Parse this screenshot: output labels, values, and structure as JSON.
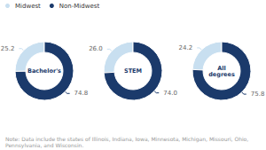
{
  "chart_data": [
    {
      "type": "pie",
      "title": "Bachelor's",
      "categories": [
        "Midwest",
        "Non-Midwest"
      ],
      "values": [
        25.2,
        74.8
      ],
      "value_labels": [
        "25.2",
        "74.8"
      ],
      "colors": [
        "#c8dff0",
        "#1b3a6b"
      ],
      "data_labels": true,
      "legend": "upper left",
      "annotations": [
        "Note: Data include the states of Illinois, Indiana, Iowa, Minnesota, Michigan, Missouri, Ohio, Pennsylvania, and Wisconsin."
      ]
    },
    {
      "type": "pie",
      "title": "STEM",
      "categories": [
        "Midwest",
        "Non-Midwest"
      ],
      "values": [
        26.0,
        74.0
      ],
      "value_labels": [
        "26.0",
        "74.0"
      ],
      "colors": [
        "#c8dff0",
        "#1b3a6b"
      ],
      "data_labels": true
    },
    {
      "type": "pie",
      "title": "All\ndegrees",
      "categories": [
        "Midwest",
        "Non-Midwest"
      ],
      "values": [
        24.2,
        75.8
      ],
      "value_labels": [
        "24.2",
        "75.8"
      ],
      "colors": [
        "#c8dff0",
        "#1b3a6b"
      ],
      "data_labels": true
    }
  ]
}
